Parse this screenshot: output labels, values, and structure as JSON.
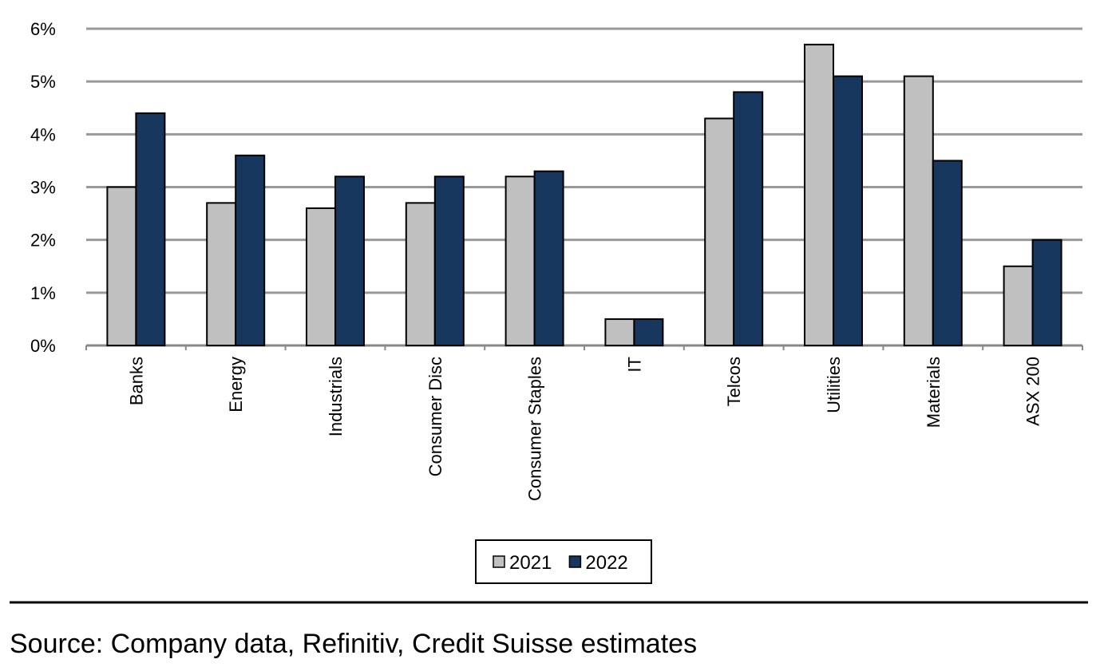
{
  "chart_data": {
    "type": "bar",
    "categories": [
      "Banks",
      "Energy",
      "Industrials",
      "Consumer Disc",
      "Consumer Staples",
      "IT",
      "Telcos",
      "Utilities",
      "Materials",
      "ASX 200"
    ],
    "series": [
      {
        "name": "2021",
        "color": "#c0c0c0",
        "values": [
          3,
          2.7,
          2.6,
          2.7,
          3.2,
          0.5,
          4.3,
          5.7,
          5.1,
          1.5
        ]
      },
      {
        "name": "2022",
        "color": "#17375e",
        "values": [
          4.4,
          3.6,
          3.2,
          3.2,
          3.3,
          0.5,
          4.8,
          5.1,
          3.5,
          2
        ]
      }
    ],
    "ylim": [
      0,
      6
    ],
    "yticks": [
      {
        "value": 0,
        "label": "0%"
      },
      {
        "value": 1,
        "label": "1%"
      },
      {
        "value": 2,
        "label": "2%"
      },
      {
        "value": 3,
        "label": "3%"
      },
      {
        "value": 4,
        "label": "4%"
      },
      {
        "value": 5,
        "label": "5%"
      },
      {
        "value": 6,
        "label": "6%"
      }
    ],
    "grid": true,
    "legend": "bottom",
    "source": "Source:  Company data, Refinitiv, Credit Suisse estimates"
  }
}
